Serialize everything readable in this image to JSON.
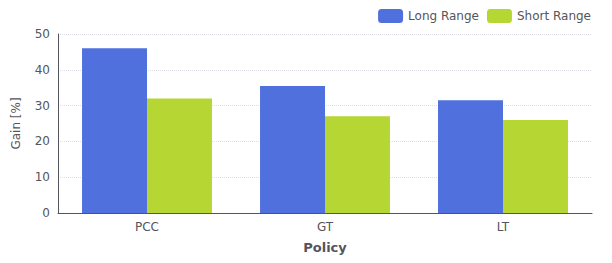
{
  "chart_data": {
    "type": "bar",
    "categories": [
      "PCC",
      "GT",
      "LT"
    ],
    "series": [
      {
        "name": "Long Range",
        "values": [
          46,
          35.5,
          31.5
        ]
      },
      {
        "name": "Short Range",
        "values": [
          32,
          27,
          26
        ]
      }
    ],
    "xlabel": "Policy",
    "ylabel": "Gain [%]",
    "ylim": [
      0,
      50
    ],
    "yticks": [
      0,
      10,
      20,
      30,
      40,
      50
    ],
    "grid": true,
    "legend": "upper right"
  }
}
